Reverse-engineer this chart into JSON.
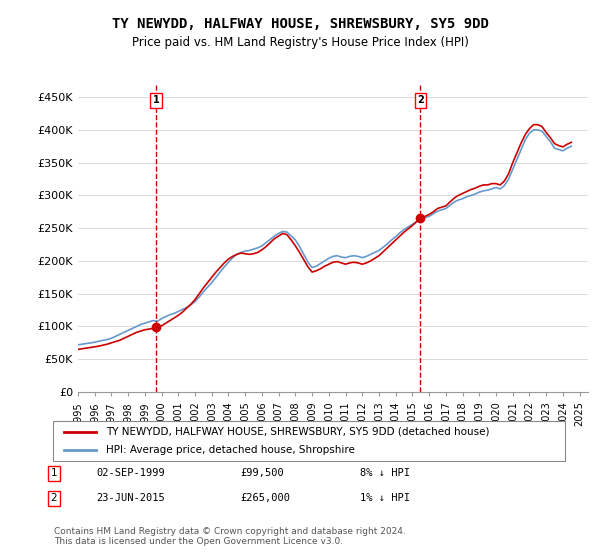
{
  "title": "TY NEWYDD, HALFWAY HOUSE, SHREWSBURY, SY5 9DD",
  "subtitle": "Price paid vs. HM Land Registry's House Price Index (HPI)",
  "ylabel_ticks": [
    0,
    50000,
    100000,
    150000,
    200000,
    250000,
    300000,
    350000,
    400000,
    450000
  ],
  "ylabel_labels": [
    "£0",
    "£50K",
    "£100K",
    "£150K",
    "£200K",
    "£250K",
    "£300K",
    "£350K",
    "£400K",
    "£450K"
  ],
  "ylim": [
    0,
    470000
  ],
  "xlim_start": 1995.0,
  "xlim_end": 2025.5,
  "sale1_x": 1999.67,
  "sale1_y": 99500,
  "sale2_x": 2015.48,
  "sale2_y": 265000,
  "hpi_color": "#6699cc",
  "price_color": "#cc0000",
  "marker_color": "#cc0000",
  "background_color": "#ffffff",
  "grid_color": "#cccccc",
  "legend_label_red": "TY NEWYDD, HALFWAY HOUSE, SHREWSBURY, SY5 9DD (detached house)",
  "legend_label_blue": "HPI: Average price, detached house, Shropshire",
  "table_row1": [
    "1",
    "02-SEP-1999",
    "£99,500",
    "8% ↓ HPI"
  ],
  "table_row2": [
    "2",
    "23-JUN-2015",
    "£265,000",
    "1% ↓ HPI"
  ],
  "footnote": "Contains HM Land Registry data © Crown copyright and database right 2024.\nThis data is licensed under the Open Government Licence v3.0.",
  "hpi_data_x": [
    1995.0,
    1995.25,
    1995.5,
    1995.75,
    1996.0,
    1996.25,
    1996.5,
    1996.75,
    1997.0,
    1997.25,
    1997.5,
    1997.75,
    1998.0,
    1998.25,
    1998.5,
    1998.75,
    1999.0,
    1999.25,
    1999.5,
    1999.75,
    2000.0,
    2000.25,
    2000.5,
    2000.75,
    2001.0,
    2001.25,
    2001.5,
    2001.75,
    2002.0,
    2002.25,
    2002.5,
    2002.75,
    2003.0,
    2003.25,
    2003.5,
    2003.75,
    2004.0,
    2004.25,
    2004.5,
    2004.75,
    2005.0,
    2005.25,
    2005.5,
    2005.75,
    2006.0,
    2006.25,
    2006.5,
    2006.75,
    2007.0,
    2007.25,
    2007.5,
    2007.75,
    2008.0,
    2008.25,
    2008.5,
    2008.75,
    2009.0,
    2009.25,
    2009.5,
    2009.75,
    2010.0,
    2010.25,
    2010.5,
    2010.75,
    2011.0,
    2011.25,
    2011.5,
    2011.75,
    2012.0,
    2012.25,
    2012.5,
    2012.75,
    2013.0,
    2013.25,
    2013.5,
    2013.75,
    2014.0,
    2014.25,
    2014.5,
    2014.75,
    2015.0,
    2015.25,
    2015.5,
    2015.75,
    2016.0,
    2016.25,
    2016.5,
    2016.75,
    2017.0,
    2017.25,
    2017.5,
    2017.75,
    2018.0,
    2018.25,
    2018.5,
    2018.75,
    2019.0,
    2019.25,
    2019.5,
    2019.75,
    2020.0,
    2020.25,
    2020.5,
    2020.75,
    2021.0,
    2021.25,
    2021.5,
    2021.75,
    2022.0,
    2022.25,
    2022.5,
    2022.75,
    2023.0,
    2023.25,
    2023.5,
    2023.75,
    2024.0,
    2024.25,
    2024.5
  ],
  "hpi_data_y": [
    72000,
    73000,
    74000,
    75000,
    76000,
    77500,
    79000,
    80000,
    82000,
    85000,
    88000,
    91000,
    94000,
    97000,
    100000,
    103000,
    105000,
    107000,
    109000,
    108000,
    112000,
    115000,
    118000,
    120000,
    123000,
    126000,
    129000,
    133000,
    138000,
    145000,
    153000,
    160000,
    167000,
    175000,
    183000,
    191000,
    198000,
    205000,
    210000,
    213000,
    215000,
    216000,
    218000,
    220000,
    223000,
    228000,
    233000,
    238000,
    242000,
    245000,
    244000,
    238000,
    232000,
    222000,
    210000,
    198000,
    190000,
    192000,
    196000,
    200000,
    204000,
    207000,
    208000,
    206000,
    205000,
    207000,
    208000,
    207000,
    205000,
    207000,
    210000,
    213000,
    216000,
    221000,
    226000,
    232000,
    237000,
    243000,
    248000,
    252000,
    256000,
    260000,
    263000,
    266000,
    268000,
    272000,
    276000,
    278000,
    280000,
    285000,
    290000,
    293000,
    295000,
    298000,
    300000,
    302000,
    305000,
    307000,
    308000,
    310000,
    312000,
    310000,
    315000,
    325000,
    340000,
    355000,
    370000,
    385000,
    395000,
    400000,
    400000,
    398000,
    390000,
    382000,
    372000,
    370000,
    368000,
    372000,
    375000
  ],
  "price_data_x": [
    1995.0,
    1995.25,
    1995.5,
    1995.75,
    1996.0,
    1996.25,
    1996.5,
    1996.75,
    1997.0,
    1997.25,
    1997.5,
    1997.75,
    1998.0,
    1998.25,
    1998.5,
    1998.75,
    1999.0,
    1999.25,
    1999.5,
    1999.75,
    2000.0,
    2000.25,
    2000.5,
    2000.75,
    2001.0,
    2001.25,
    2001.5,
    2001.75,
    2002.0,
    2002.25,
    2002.5,
    2002.75,
    2003.0,
    2003.25,
    2003.5,
    2003.75,
    2004.0,
    2004.25,
    2004.5,
    2004.75,
    2005.0,
    2005.25,
    2005.5,
    2005.75,
    2006.0,
    2006.25,
    2006.5,
    2006.75,
    2007.0,
    2007.25,
    2007.5,
    2007.75,
    2008.0,
    2008.25,
    2008.5,
    2008.75,
    2009.0,
    2009.25,
    2009.5,
    2009.75,
    2010.0,
    2010.25,
    2010.5,
    2010.75,
    2011.0,
    2011.25,
    2011.5,
    2011.75,
    2012.0,
    2012.25,
    2012.5,
    2012.75,
    2013.0,
    2013.25,
    2013.5,
    2013.75,
    2014.0,
    2014.25,
    2014.5,
    2014.75,
    2015.0,
    2015.25,
    2015.5,
    2015.75,
    2016.0,
    2016.25,
    2016.5,
    2016.75,
    2017.0,
    2017.25,
    2017.5,
    2017.75,
    2018.0,
    2018.25,
    2018.5,
    2018.75,
    2019.0,
    2019.25,
    2019.5,
    2019.75,
    2020.0,
    2020.25,
    2020.5,
    2020.75,
    2021.0,
    2021.25,
    2021.5,
    2021.75,
    2022.0,
    2022.25,
    2022.5,
    2022.75,
    2023.0,
    2023.25,
    2023.5,
    2023.75,
    2024.0,
    2024.25,
    2024.5
  ],
  "price_data_y": [
    65000,
    66000,
    67000,
    68000,
    69000,
    70000,
    71500,
    73000,
    75000,
    77000,
    79000,
    82000,
    85000,
    88000,
    91000,
    93000,
    95000,
    96000,
    97000,
    98000,
    101000,
    105000,
    109000,
    113000,
    117000,
    122000,
    128000,
    134000,
    141000,
    150000,
    159000,
    167000,
    175000,
    183000,
    190000,
    197000,
    203000,
    207000,
    210000,
    212000,
    211000,
    210000,
    211000,
    213000,
    217000,
    222000,
    228000,
    234000,
    238000,
    242000,
    240000,
    232000,
    223000,
    213000,
    202000,
    191000,
    183000,
    185000,
    188000,
    192000,
    195000,
    198000,
    199000,
    197000,
    195000,
    197000,
    198000,
    197000,
    195000,
    197000,
    200000,
    204000,
    208000,
    214000,
    220000,
    226000,
    232000,
    238000,
    244000,
    249000,
    254000,
    260000,
    265000,
    268000,
    271000,
    275000,
    280000,
    282000,
    284000,
    290000,
    296000,
    300000,
    303000,
    306000,
    309000,
    311000,
    314000,
    316000,
    316000,
    318000,
    318000,
    316000,
    322000,
    333000,
    350000,
    365000,
    380000,
    393000,
    402000,
    408000,
    408000,
    405000,
    396000,
    388000,
    379000,
    376000,
    374000,
    378000,
    381000
  ]
}
